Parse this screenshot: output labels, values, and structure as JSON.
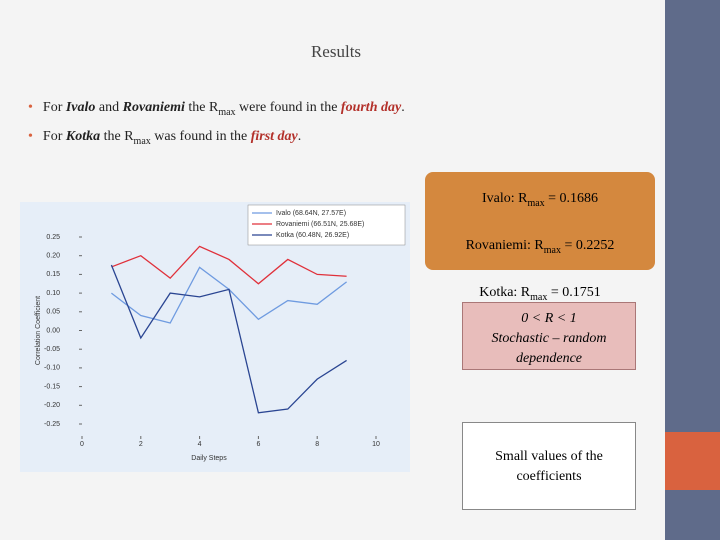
{
  "slide": {
    "title": "Results",
    "bullets": [
      [
        "For ",
        "Ivalo",
        " and ",
        "Rovaniemi",
        " the R",
        "max",
        " were found in the ",
        "fourth day",
        "."
      ],
      [
        "For ",
        "Kotka",
        " the R",
        "max",
        " was found in the ",
        "first day",
        "."
      ]
    ],
    "rmax_box": [
      [
        "Ivalo: R",
        "max",
        " = 0.1686"
      ],
      [
        "Rovaniemi: R",
        "max",
        " = 0.2252"
      ],
      [
        "Kotka: R",
        "max",
        " = 0.1751"
      ]
    ],
    "range_box": [
      "0 < R < 1",
      "Stochastic – random dependence"
    ],
    "note_box": "Small values of the coefficients"
  },
  "chart_data": {
    "type": "line",
    "xlabel": "Daily Steps",
    "ylabel": "Correlation Coefficient",
    "x": [
      1,
      2,
      3,
      4,
      5,
      6,
      7,
      8,
      9
    ],
    "series": [
      {
        "name": "Ivalo (68.64N, 27.57E)",
        "color": "#6f9be0",
        "values": [
          0.1,
          0.04,
          0.02,
          0.169,
          0.11,
          0.03,
          0.08,
          0.07,
          0.13
        ]
      },
      {
        "name": "Rovaniemi (66.51N, 25.68E)",
        "color": "#e0303a",
        "values": [
          0.17,
          0.2,
          0.14,
          0.225,
          0.19,
          0.125,
          0.19,
          0.15,
          0.145
        ]
      },
      {
        "name": "Kotka (60.48N, 26.92E)",
        "color": "#2a4592",
        "values": [
          0.175,
          -0.02,
          0.1,
          0.09,
          0.11,
          -0.22,
          -0.21,
          -0.13,
          -0.08
        ]
      }
    ],
    "xlim": [
      0,
      10
    ],
    "xticks": [
      0,
      2,
      4,
      6,
      8,
      10
    ],
    "ylim": [
      -0.25,
      0.25
    ],
    "yticks": [
      -0.25,
      {
        "value": -0.2,
        "label": "-0.20"
      },
      -0.15,
      {
        "value": -0.1,
        "label": "-0.10"
      },
      -0.05,
      {
        "value": 0,
        "label": "0.00"
      },
      0.05,
      {
        "value": 0.1,
        "label": "0.10"
      },
      0.15,
      {
        "value": 0.2,
        "label": "0.20"
      },
      0.25
    ]
  }
}
